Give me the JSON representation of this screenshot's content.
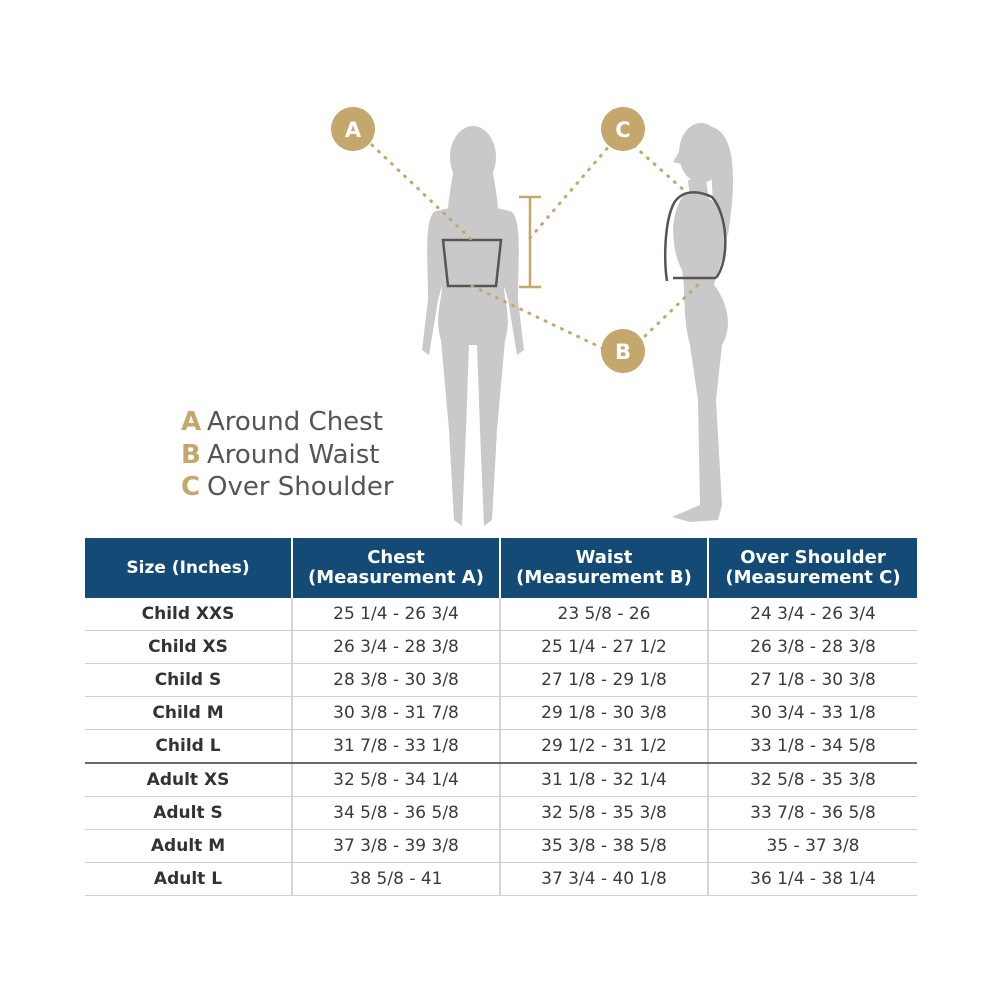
{
  "diagram": {
    "markers": [
      {
        "letter": "A",
        "label": "Around Chest"
      },
      {
        "letter": "B",
        "label": "Around Waist"
      },
      {
        "letter": "C",
        "label": "Over Shoulder"
      }
    ],
    "colors": {
      "gold": "#c4a76d",
      "header_blue": "#134a76",
      "figure_gray": "#c9c9c9",
      "outline": "#555555"
    }
  },
  "legend": [
    {
      "key": "A",
      "label": "Around Chest"
    },
    {
      "key": "B",
      "label": "Around Waist"
    },
    {
      "key": "C",
      "label": "Over Shoulder"
    }
  ],
  "table": {
    "headers": [
      {
        "line1": "Size (Inches)",
        "line2": ""
      },
      {
        "line1": "Chest",
        "line2": "(Measurement A)"
      },
      {
        "line1": "Waist",
        "line2": "(Measurement B)"
      },
      {
        "line1": "Over Shoulder",
        "line2": "(Measurement C)"
      }
    ],
    "rows": [
      [
        "Child XXS",
        "25 1/4 - 26 3/4",
        "23 5/8 - 26",
        "24 3/4 - 26 3/4"
      ],
      [
        "Child XS",
        "26 3/4 - 28 3/8",
        "25 1/4 - 27 1/2",
        "26 3/8 - 28 3/8"
      ],
      [
        "Child S",
        "28 3/8 - 30 3/8",
        "27 1/8 - 29 1/8",
        "27 1/8 - 30 3/8"
      ],
      [
        "Child M",
        "30 3/8 - 31 7/8",
        "29 1/8 - 30 3/8",
        "30 3/4 - 33 1/8"
      ],
      [
        "Child L",
        "31 7/8 - 33 1/8",
        "29 1/2 - 31 1/2",
        "33 1/8 - 34 5/8"
      ],
      [
        "Adult XS",
        "32 5/8 - 34 1/4",
        "31 1/8 - 32 1/4",
        "32 5/8 - 35 3/8"
      ],
      [
        "Adult S",
        "34 5/8 - 36 5/8",
        "32 5/8 - 35 3/8",
        "33 7/8 - 36 5/8"
      ],
      [
        "Adult M",
        "37 3/8 - 39 3/8",
        "35 3/8 - 38 5/8",
        "35 - 37 3/8"
      ],
      [
        "Adult L",
        "38 5/8 - 41",
        "37 3/4 - 40 1/8",
        "36 1/4 - 38 1/4"
      ]
    ]
  }
}
